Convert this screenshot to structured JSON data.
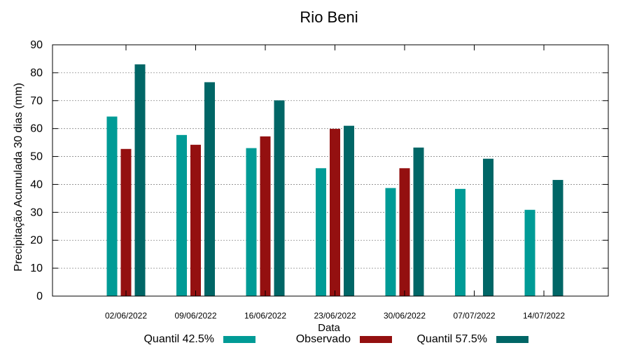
{
  "chart_data": {
    "type": "bar",
    "title": "Rio Beni",
    "xlabel": "Data",
    "ylabel": "Precipitação Acumulada 30 dias (mm)",
    "ylim": [
      0,
      90
    ],
    "yticks": [
      0,
      10,
      20,
      30,
      40,
      50,
      60,
      70,
      80,
      90
    ],
    "grid": true,
    "legend_position": "bottom",
    "categories": [
      "02/06/2022",
      "09/06/2022",
      "16/06/2022",
      "23/06/2022",
      "30/06/2022",
      "07/07/2022",
      "14/07/2022"
    ],
    "series": [
      {
        "name": "Quantil 42.5%",
        "color": "#009b96",
        "values": [
          64.3,
          57.7,
          53.0,
          45.8,
          38.7,
          38.4,
          30.9
        ]
      },
      {
        "name": "Observado",
        "color": "#941010",
        "values": [
          52.7,
          54.2,
          57.2,
          59.9,
          45.8,
          null,
          null
        ]
      },
      {
        "name": "Quantil 57.5%",
        "color": "#006666",
        "values": [
          83.0,
          76.6,
          70.1,
          61.0,
          53.2,
          49.2,
          41.6
        ]
      }
    ]
  }
}
